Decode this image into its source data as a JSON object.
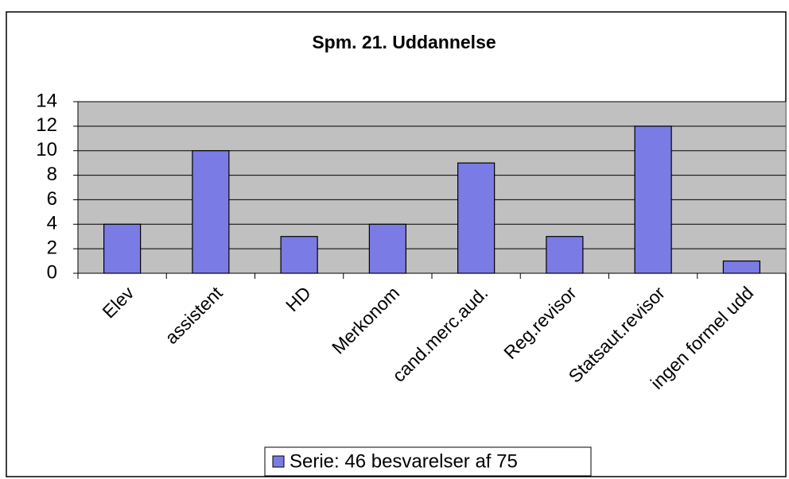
{
  "chart_data": {
    "type": "bar",
    "title": "Spm. 21. Uddannelse",
    "categories": [
      "Elev",
      "assistent",
      "HD",
      "Merkonom",
      "cand.merc.aud.",
      "Reg.revisor",
      "Statsaut.revisor",
      "ingen formel udd"
    ],
    "series": [
      {
        "name": "Serie: 46 besvarelser af 75",
        "color": "#7b7be6",
        "values": [
          4,
          10,
          3,
          4,
          9,
          3,
          12,
          1
        ]
      }
    ],
    "ylim": [
      0,
      14
    ],
    "yticks": [
      0,
      2,
      4,
      6,
      8,
      10,
      12,
      14
    ],
    "grid": true,
    "legend": "bottom"
  }
}
